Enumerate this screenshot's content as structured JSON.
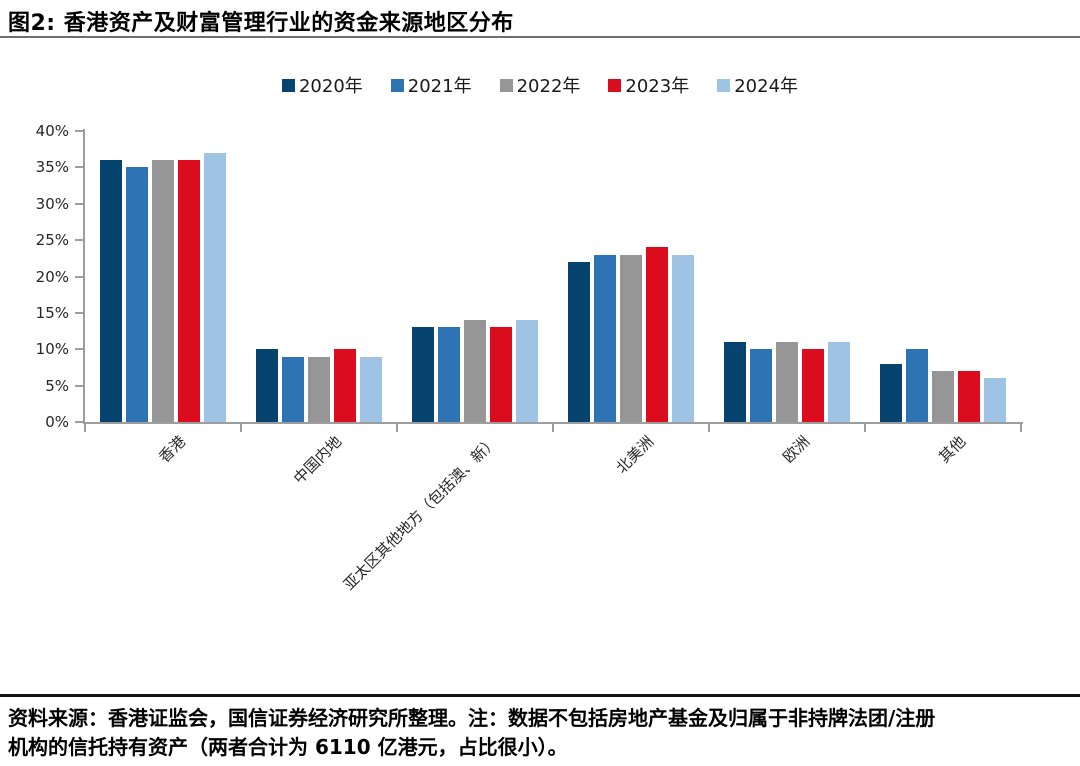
{
  "header": {
    "title": "图2: 香港资产及财富管理行业的资金来源地区分布"
  },
  "chart_data": {
    "type": "bar",
    "title": "图2: 香港资产及财富管理行业的资金来源地区分布",
    "categories": [
      "香港",
      "中国内地",
      "亚太区其他地方（包括澳、新）",
      "北美洲",
      "欧洲",
      "其他"
    ],
    "series": [
      {
        "name": "2020年",
        "color": "#06436F",
        "values": [
          36,
          10,
          13,
          22,
          11,
          8
        ]
      },
      {
        "name": "2021年",
        "color": "#2E74B5",
        "values": [
          35,
          9,
          13,
          23,
          10,
          10
        ]
      },
      {
        "name": "2022年",
        "color": "#969696",
        "values": [
          36,
          9,
          14,
          23,
          11,
          7
        ]
      },
      {
        "name": "2023年",
        "color": "#DA0C1E",
        "values": [
          36,
          10,
          13,
          24,
          10,
          7
        ]
      },
      {
        "name": "2024年",
        "color": "#9FC3E5",
        "values": [
          37,
          9,
          14,
          23,
          11,
          6
        ]
      }
    ],
    "xlabel": "",
    "ylabel": "",
    "ylim": [
      0,
      40
    ],
    "ytick_step": 5,
    "ytick_suffix": "%",
    "grid": false,
    "legend_position": "top",
    "x_label_rotation_deg": -45
  },
  "footer": {
    "lines": [
      "资料来源：香港证监会，国信证券经济研究所整理。注：数据不包括房地产基金及归属于非持牌法团/注册",
      "机构的信托持有资产（两者合计为 6110 亿港元，占比很小）。"
    ]
  },
  "style": {
    "axis_color": "#9d9d9d",
    "text_color": "#262626"
  }
}
